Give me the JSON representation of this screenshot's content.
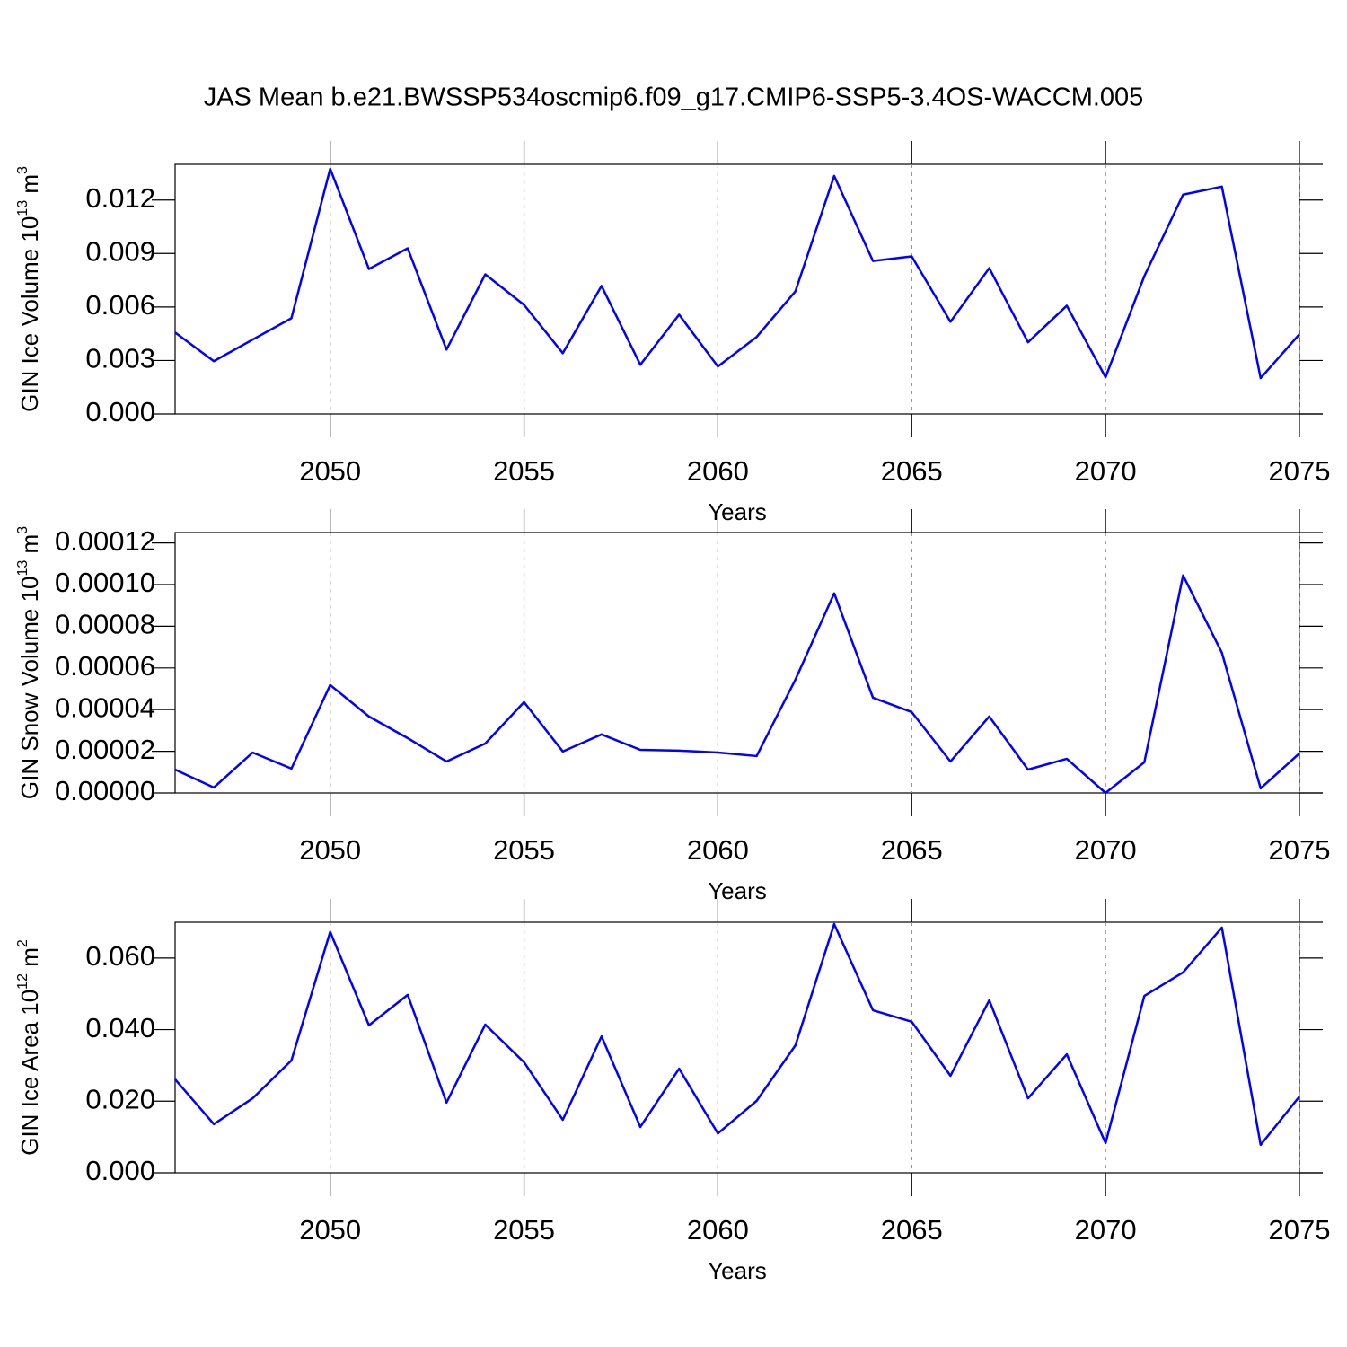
{
  "title": "JAS Mean b.e21.BWSSP534oscmip6.f09_g17.CMIP6-SSP5-3.4OS-WACCM.005",
  "chart_data": [
    {
      "type": "line",
      "ylabel": [
        "GIN Ice Volume 10",
        "13",
        " m",
        "3"
      ],
      "xlabel": "Years",
      "x": [
        2046,
        2047,
        2048,
        2049,
        2050,
        2051,
        2052,
        2053,
        2054,
        2055,
        2056,
        2057,
        2058,
        2059,
        2060,
        2061,
        2062,
        2063,
        2064,
        2065,
        2066,
        2067,
        2068,
        2069,
        2070,
        2071,
        2072,
        2073,
        2074,
        2075
      ],
      "series": [
        {
          "color": "#0000ff",
          "values": [
            0.00457,
            0.00296,
            0.00417,
            0.00537,
            0.01375,
            0.00813,
            0.00929,
            0.00361,
            0.00783,
            0.00612,
            0.00341,
            0.00718,
            0.00276,
            0.00557,
            0.00266,
            0.00432,
            0.00688,
            0.01335,
            0.00858,
            0.00884,
            0.00517,
            0.00818,
            0.00402,
            0.00607,
            0.00206,
            0.00773,
            0.0123,
            0.01275,
            0.00201,
            0.00447
          ]
        }
      ],
      "xlim": [
        2046,
        2075
      ],
      "xticks": [
        2050,
        2055,
        2060,
        2065,
        2070,
        2075
      ],
      "ylim": [
        0,
        0.014
      ],
      "yticks": [
        {
          "value": 0,
          "label": "0.000"
        },
        {
          "value": 0.003,
          "label": "0.003"
        },
        {
          "value": 0.006,
          "label": "0.006"
        },
        {
          "value": 0.009,
          "label": "0.009"
        },
        {
          "value": 0.012,
          "label": "0.012"
        }
      ],
      "grid": "x-dashed"
    },
    {
      "type": "line",
      "ylabel": [
        "GIN Snow Volume 10",
        "13",
        " m",
        "3"
      ],
      "xlabel": "Years",
      "x": [
        2046,
        2047,
        2048,
        2049,
        2050,
        2051,
        2052,
        2053,
        2054,
        2055,
        2056,
        2057,
        2058,
        2059,
        2060,
        2061,
        2062,
        2063,
        2064,
        2065,
        2066,
        2067,
        2068,
        2069,
        2070,
        2071,
        2072,
        2073,
        2074,
        2075
      ],
      "series": [
        {
          "color": "#0000ff",
          "values": [
            1.12e-05,
            2.6e-06,
            1.94e-05,
            1.17e-05,
            5.18e-05,
            3.67e-05,
            2.63e-05,
            1.51e-05,
            2.37e-05,
            4.36e-05,
            1.99e-05,
            2.81e-05,
            2.07e-05,
            2.03e-05,
            1.94e-05,
            1.77e-05,
            5.44e-05,
            9.58e-05,
            4.57e-05,
            3.88e-05,
            1.51e-05,
            3.67e-05,
            1.12e-05,
            1.64e-05,
            0,
            1.47e-05,
            0.0001044,
            6.73e-05,
            2.2e-06,
            1.9e-05
          ]
        }
      ],
      "xlim": [
        2046,
        2075
      ],
      "xticks": [
        2050,
        2055,
        2060,
        2065,
        2070,
        2075
      ],
      "ylim": [
        0,
        0.000125
      ],
      "yticks": [
        {
          "value": 0,
          "label": "0.00000"
        },
        {
          "value": 2e-05,
          "label": "0.00002"
        },
        {
          "value": 4e-05,
          "label": "0.00004"
        },
        {
          "value": 6e-05,
          "label": "0.00006"
        },
        {
          "value": 8e-05,
          "label": "0.00008"
        },
        {
          "value": 0.0001,
          "label": "0.00010"
        },
        {
          "value": 0.00012,
          "label": "0.00012"
        }
      ],
      "grid": "x-dashed"
    },
    {
      "type": "line",
      "ylabel": [
        "GIN Ice Area 10",
        "12",
        " m",
        "2"
      ],
      "xlabel": "Years",
      "x": [
        2046,
        2047,
        2048,
        2049,
        2050,
        2051,
        2052,
        2053,
        2054,
        2055,
        2056,
        2057,
        2058,
        2059,
        2060,
        2061,
        2062,
        2063,
        2064,
        2065,
        2066,
        2067,
        2068,
        2069,
        2070,
        2071,
        2072,
        2073,
        2074,
        2075
      ],
      "series": [
        {
          "color": "#0000ff",
          "values": [
            0.0261,
            0.0136,
            0.0208,
            0.0314,
            0.0673,
            0.0412,
            0.0497,
            0.0196,
            0.0414,
            0.0309,
            0.0148,
            0.0381,
            0.0128,
            0.0291,
            0.011,
            0.0201,
            0.0356,
            0.0695,
            0.0454,
            0.0422,
            0.0271,
            0.0482,
            0.0208,
            0.0331,
            0.0083,
            0.0494,
            0.056,
            0.0685,
            0.0078,
            0.0213
          ]
        }
      ],
      "xlim": [
        2046,
        2075
      ],
      "xticks": [
        2050,
        2055,
        2060,
        2065,
        2070,
        2075
      ],
      "ylim": [
        0,
        0.07
      ],
      "yticks": [
        {
          "value": 0,
          "label": "0.000"
        },
        {
          "value": 0.02,
          "label": "0.020"
        },
        {
          "value": 0.04,
          "label": "0.040"
        },
        {
          "value": 0.06,
          "label": "0.060"
        }
      ],
      "grid": "x-dashed"
    }
  ]
}
